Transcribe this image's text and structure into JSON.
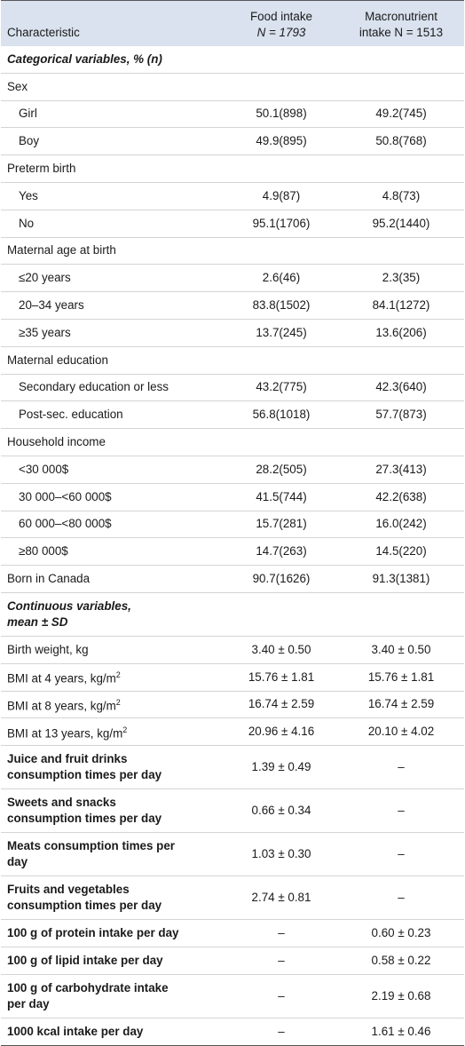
{
  "header": {
    "col1": "Characteristic",
    "col2_line1": "Food intake",
    "col2_n": "N = 1793",
    "col3_line1": "Macronutrient",
    "col3_n": "intake N = 1513"
  },
  "rows": [
    {
      "type": "section",
      "label": "Categorical variables, % (n)"
    },
    {
      "type": "group",
      "label": "Sex"
    },
    {
      "type": "item",
      "label": "Girl",
      "food": "50.1(898)",
      "macro": "49.2(745)"
    },
    {
      "type": "item",
      "label": "Boy",
      "food": "49.9(895)",
      "macro": "50.8(768)"
    },
    {
      "type": "group",
      "label": "Preterm birth"
    },
    {
      "type": "item",
      "label": "Yes",
      "food": "4.9(87)",
      "macro": "4.8(73)"
    },
    {
      "type": "item",
      "label": "No",
      "food": "95.1(1706)",
      "macro": "95.2(1440)"
    },
    {
      "type": "group",
      "label": "Maternal age at birth"
    },
    {
      "type": "item",
      "label": "≤20 years",
      "food": "2.6(46)",
      "macro": "2.3(35)"
    },
    {
      "type": "item",
      "label": "20–34 years",
      "food": "83.8(1502)",
      "macro": "84.1(1272)"
    },
    {
      "type": "item",
      "label": "≥35 years",
      "food": "13.7(245)",
      "macro": "13.6(206)"
    },
    {
      "type": "group",
      "label": "Maternal education"
    },
    {
      "type": "item",
      "label": "Secondary education or less",
      "food": "43.2(775)",
      "macro": "42.3(640)"
    },
    {
      "type": "item",
      "label": "Post-sec. education",
      "food": "56.8(1018)",
      "macro": "57.7(873)"
    },
    {
      "type": "group",
      "label": "Household income"
    },
    {
      "type": "item",
      "label": "<30 000$",
      "food": "28.2(505)",
      "macro": "27.3(413)"
    },
    {
      "type": "item",
      "label": "30 000–<60 000$",
      "food": "41.5(744)",
      "macro": "42.2(638)"
    },
    {
      "type": "item",
      "label": "60 000–<80 000$",
      "food": "15.7(281)",
      "macro": "16.0(242)"
    },
    {
      "type": "item",
      "label": "≥80 000$",
      "food": "14.7(263)",
      "macro": "14.5(220)"
    },
    {
      "type": "plain",
      "label": "Born in Canada",
      "food": "90.7(1626)",
      "macro": "91.3(1381)"
    },
    {
      "type": "section2",
      "label_line1": "Continuous variables,",
      "label_line2": "mean ± SD"
    },
    {
      "type": "plain",
      "label": "Birth weight, kg",
      "food": "3.40 ± 0.50",
      "macro": "3.40 ± 0.50"
    },
    {
      "type": "bmi",
      "label": "BMI at 4 years, kg/m",
      "food": "15.76 ± 1.81",
      "macro": "15.76 ± 1.81"
    },
    {
      "type": "bmi",
      "label": "BMI at 8 years, kg/m",
      "food": "16.74 ± 2.59",
      "macro": "16.74 ± 2.59"
    },
    {
      "type": "bmi",
      "label": "BMI at 13 years, kg/m",
      "food": "20.96 ± 4.16",
      "macro": "20.10 ± 4.02"
    },
    {
      "type": "bold2",
      "label_line1": "Juice and fruit drinks",
      "label_line2": "consumption times per day",
      "food": "1.39 ± 0.49",
      "macro": "–"
    },
    {
      "type": "bold2",
      "label_line1": "Sweets and snacks",
      "label_line2": "consumption times per day",
      "food": "0.66 ± 0.34",
      "macro": "–"
    },
    {
      "type": "bold2",
      "label_line1": "Meats consumption times per",
      "label_line2": "day",
      "food": "1.03 ± 0.30",
      "macro": "–"
    },
    {
      "type": "bold2",
      "label_line1": "Fruits and vegetables",
      "label_line2": "consumption times per day",
      "food": "2.74 ± 0.81",
      "macro": "–"
    },
    {
      "type": "bold",
      "label": "100 g of protein intake per day",
      "food": "–",
      "macro": "0.60 ± 0.23"
    },
    {
      "type": "bold",
      "label": "100 g of lipid intake per day",
      "food": "–",
      "macro": "0.58 ± 0.22"
    },
    {
      "type": "bold2",
      "label_line1": "100 g of carbohydrate intake",
      "label_line2": "per day",
      "food": "–",
      "macro": "2.19 ± 0.68"
    },
    {
      "type": "bold",
      "label": "1000 kcal intake per day",
      "food": "–",
      "macro": "1.61 ± 0.46"
    }
  ],
  "superscript": "2"
}
